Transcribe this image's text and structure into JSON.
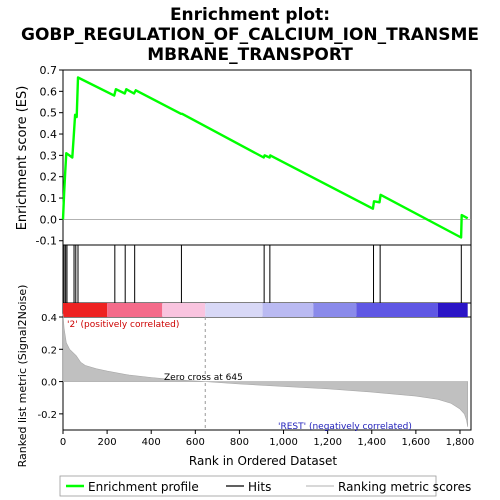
{
  "chart_data": {
    "type": "line",
    "title_lines": [
      "Enrichment plot:",
      "GOBP_REGULATION_OF_CALCIUM_ION_TRANSME",
      "MBRANE_TRANSPORT"
    ],
    "es_panel": {
      "ylabel": "Enrichment score (ES)",
      "ylim": [
        -0.12,
        0.7
      ],
      "yticks": [
        -0.1,
        0.0,
        0.1,
        0.2,
        0.3,
        0.4,
        0.5,
        0.6,
        0.7
      ],
      "ytick_labels": [
        "-0.1",
        "0.0",
        "0.1",
        "0.2",
        "0.3",
        "0.4",
        "0.5",
        "0.6",
        "0.7"
      ],
      "color": "#00ff00",
      "series": {
        "name": "Enrichment profile",
        "x": [
          0,
          5,
          10,
          15,
          42,
          48,
          55,
          62,
          68,
          232,
          240,
          280,
          287,
          322,
          330,
          535,
          540,
          910,
          914,
          937,
          940,
          1405,
          1410,
          1435,
          1440,
          1805,
          1808,
          1835
        ],
        "y": [
          0.0,
          0.12,
          0.22,
          0.31,
          0.29,
          0.38,
          0.49,
          0.48,
          0.665,
          0.58,
          0.61,
          0.59,
          0.61,
          0.59,
          0.605,
          0.495,
          0.495,
          0.29,
          0.3,
          0.29,
          0.3,
          0.05,
          0.085,
          0.08,
          0.115,
          -0.085,
          0.02,
          0.005
        ]
      },
      "hits": [
        5,
        12,
        18,
        50,
        58,
        68,
        235,
        282,
        325,
        537,
        912,
        938,
        1408,
        1438,
        1806
      ]
    },
    "rank_panel": {
      "xlabel": "Rank in Ordered Dataset",
      "ylabel": "Ranked list metric (Signal2Noise)",
      "xlim": [
        0,
        1850
      ],
      "xticks": [
        0,
        200,
        400,
        600,
        800,
        1000,
        1200,
        1400,
        1600,
        1800
      ],
      "xtick_labels": [
        "0",
        "200",
        "400",
        "600",
        "800",
        "1,000",
        "1,200",
        "1,400",
        "1,600",
        "1,800"
      ],
      "ylim": [
        -0.3,
        0.4
      ],
      "yticks": [
        -0.2,
        0.0,
        0.2,
        0.4
      ],
      "ytick_labels": [
        "-0.2",
        "0.0",
        "0.2",
        "0.4"
      ],
      "metric_x": [
        0,
        5,
        15,
        30,
        60,
        80,
        100,
        150,
        200,
        300,
        400,
        500,
        645,
        800,
        1000,
        1200,
        1400,
        1600,
        1700,
        1760,
        1800,
        1820,
        1830,
        1835
      ],
      "metric_y": [
        0.42,
        0.33,
        0.24,
        0.2,
        0.16,
        0.12,
        0.1,
        0.08,
        0.065,
        0.04,
        0.025,
        0.012,
        0.0,
        -0.015,
        -0.03,
        -0.045,
        -0.065,
        -0.09,
        -0.11,
        -0.135,
        -0.17,
        -0.2,
        -0.24,
        -0.28
      ],
      "zero_cross": 645,
      "zero_cross_label": "Zero cross at 645",
      "pos_label": "'2' (positively correlated)",
      "neg_label": "'REST' (negatively correlated)",
      "fill_color": "#c0c0c0"
    },
    "color_bar": [
      {
        "from": 0,
        "to": 200,
        "color": "#ee2222"
      },
      {
        "from": 200,
        "to": 450,
        "color": "#f46b8a"
      },
      {
        "from": 450,
        "to": 645,
        "color": "#f9c4df"
      },
      {
        "from": 645,
        "to": 905,
        "color": "#d8d8f6"
      },
      {
        "from": 905,
        "to": 1135,
        "color": "#babaf2"
      },
      {
        "from": 1135,
        "to": 1330,
        "color": "#8a8aea"
      },
      {
        "from": 1330,
        "to": 1700,
        "color": "#5f57e4"
      },
      {
        "from": 1700,
        "to": 1835,
        "color": "#2a14c6"
      }
    ],
    "legend": [
      {
        "label": "Enrichment profile",
        "color": "#00ff00"
      },
      {
        "label": "Hits",
        "color": "#000000"
      },
      {
        "label": "Ranking metric scores",
        "color": "#c0c0c0"
      }
    ]
  }
}
